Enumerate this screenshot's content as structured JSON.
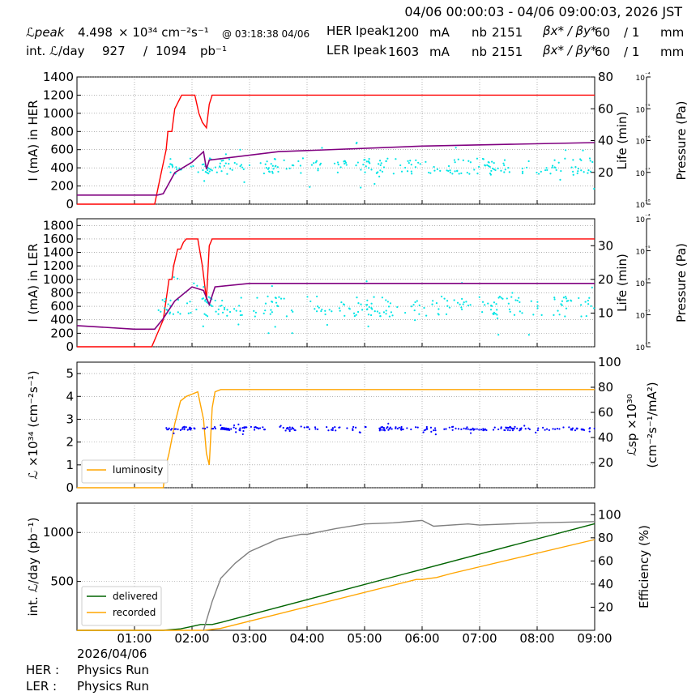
{
  "header": {
    "time_range": "04/06 00:00:03 - 04/06 09:00:03, 2026 JST",
    "lpeak_label": "ℒpeak",
    "lpeak_value": "4.498",
    "lpeak_unit": "× 10³⁴ cm⁻²s⁻¹",
    "lpeak_time": "@ 03:18:38 04/06",
    "intl_label": "int. ℒ/day",
    "intl_value": "927",
    "intl_sep": "/",
    "intl_total": "1094",
    "intl_unit": "pb⁻¹",
    "her_label": "HER Ipeak",
    "her_current": "1200",
    "her_unit": "mA",
    "her_nb_label": "nb",
    "her_nb": "2151",
    "her_beta_label": "βx* / βy*",
    "her_beta_x": "60",
    "her_beta_y": "/ 1",
    "her_beta_unit": "mm",
    "ler_label": "LER Ipeak",
    "ler_current": "1603",
    "ler_unit": "mA",
    "ler_nb_label": "nb",
    "ler_nb": "2151",
    "ler_beta_label": "βx* / βy*",
    "ler_beta_x": "60",
    "ler_beta_y": "/ 1",
    "ler_beta_unit": "mm"
  },
  "footer": {
    "date": "2026/04/06",
    "her_status_label": "HER :",
    "her_status": "Physics Run",
    "ler_status_label": "LER :",
    "ler_status": "Physics Run"
  },
  "colors": {
    "current": "#ff0000",
    "life": "#00e5e5",
    "pressure": "#800080",
    "luminosity": "#ffa500",
    "specific": "#0000ff",
    "delivered": "#006400",
    "recorded": "#ffa500",
    "efficiency": "#808080"
  },
  "chart_data": [
    {
      "type": "line",
      "panel": "her",
      "xlabel": "",
      "ylabel": "I (mA) in HER",
      "ylim": [
        0,
        1400
      ],
      "yticks": [
        0,
        200,
        400,
        600,
        800,
        1000,
        1200,
        1400
      ],
      "y2label": "Life (min)",
      "y2lim": [
        0,
        80
      ],
      "y2ticks": [
        20,
        40,
        60,
        80
      ],
      "y3label": "Pressure (Pa)",
      "y3ticks": [
        "10⁻⁸",
        "10⁻⁷",
        "10⁻⁶",
        "10⁻⁵",
        "10⁻⁴"
      ],
      "grid": true,
      "series": [
        {
          "role": "current",
          "axis": "y",
          "x": [
            0,
            1.35,
            1.45,
            1.55,
            1.58,
            1.65,
            1.7,
            1.78,
            1.82,
            1.86,
            2.0,
            2.05,
            2.12,
            2.18,
            2.25,
            2.3,
            2.35,
            2.4,
            9.0
          ],
          "y": [
            0,
            0,
            300,
            600,
            800,
            800,
            1050,
            1150,
            1200,
            1200,
            1200,
            1200,
            1000,
            900,
            840,
            1100,
            1200,
            1200,
            1200
          ]
        },
        {
          "role": "life",
          "axis": "y2",
          "kind": "scatter",
          "x_start": 1.6,
          "x_end": 9.0,
          "y_center": 24,
          "y_spread": 5
        },
        {
          "role": "pressure",
          "axis": "y3",
          "x": [
            0,
            1.4,
            1.5,
            1.6,
            1.7,
            2.0,
            2.2,
            2.25,
            2.3,
            3.5,
            6.0,
            9.0
          ],
          "y": [
            1.3,
            1.3,
            1.5,
            3.0,
            4.5,
            6.0,
            7.5,
            5.0,
            6.3,
            7.5,
            8.3,
            8.8
          ]
        }
      ]
    },
    {
      "type": "line",
      "panel": "ler",
      "xlabel": "",
      "ylabel": "I (mA) in LER",
      "ylim": [
        0,
        1900
      ],
      "yticks": [
        0,
        200,
        400,
        600,
        800,
        1000,
        1200,
        1400,
        1600,
        1800
      ],
      "y2label": "Life (min)",
      "y2lim": [
        0,
        38
      ],
      "y2ticks": [
        10,
        20,
        30
      ],
      "y3label": "Pressure (Pa)",
      "y3ticks": [
        "10⁻⁸",
        "10⁻⁷",
        "10⁻⁶",
        "10⁻⁵",
        "10⁻⁴"
      ],
      "grid": true,
      "series": [
        {
          "role": "current",
          "axis": "y",
          "x": [
            0,
            1.3,
            1.4,
            1.5,
            1.55,
            1.6,
            1.65,
            1.68,
            1.75,
            1.8,
            1.85,
            1.9,
            2.0,
            2.1,
            2.18,
            2.25,
            2.3,
            2.35,
            2.42,
            2.5,
            9.0
          ],
          "y": [
            0,
            0,
            200,
            400,
            700,
            1000,
            1000,
            1200,
            1450,
            1450,
            1550,
            1600,
            1600,
            1600,
            1200,
            700,
            1500,
            1600,
            1600,
            1600,
            1600
          ]
        },
        {
          "role": "life",
          "axis": "y2",
          "kind": "scatter",
          "x_start": 1.4,
          "x_end": 9.0,
          "y_center": 12,
          "y_spread": 3
        },
        {
          "role": "pressure",
          "axis": "y3",
          "x": [
            0,
            1.0,
            1.35,
            1.5,
            1.7,
            2.0,
            2.2,
            2.3,
            2.4,
            3.0,
            9.0
          ],
          "y": [
            3.0,
            2.5,
            2.5,
            4.0,
            6.5,
            8.5,
            8.0,
            6.0,
            8.5,
            9.0,
            9.0
          ]
        }
      ]
    },
    {
      "type": "line",
      "panel": "lum",
      "xlabel": "",
      "ylabel": "ℒ ×10³⁴ (cm⁻²s⁻¹)",
      "ylim": [
        0,
        5.5
      ],
      "yticks": [
        0,
        1,
        2,
        3,
        4,
        5
      ],
      "y2label": "ℒsp ×10³⁰ (cm⁻²s⁻¹/mA²)",
      "y2lim": [
        0,
        100
      ],
      "y2ticks": [
        20,
        40,
        60,
        80,
        100
      ],
      "legend": "lower-left",
      "grid": true,
      "series": [
        {
          "name": "luminosity",
          "role": "luminosity",
          "axis": "y",
          "x": [
            0,
            1.5,
            1.55,
            1.6,
            1.7,
            1.8,
            1.9,
            2.0,
            2.1,
            2.2,
            2.25,
            2.3,
            2.35,
            2.4,
            2.5,
            9.0
          ],
          "y": [
            0,
            0,
            1.0,
            1.5,
            2.8,
            3.8,
            4.0,
            4.1,
            4.2,
            3.0,
            1.5,
            1.0,
            3.5,
            4.2,
            4.3,
            4.3
          ]
        },
        {
          "role": "specific",
          "axis": "y2",
          "kind": "scatter",
          "x_start": 1.55,
          "x_end": 9.0,
          "y_center": 47,
          "y_spread": 1.5
        }
      ]
    },
    {
      "type": "line",
      "panel": "int",
      "xlabel": "",
      "ylabel": "int. ℒ/day (pb⁻¹)",
      "ylim": [
        0,
        1300
      ],
      "yticks": [
        500,
        1000
      ],
      "y2label": "Efficiency (%)",
      "y2lim": [
        0,
        110
      ],
      "y2ticks": [
        20,
        40,
        60,
        80,
        100
      ],
      "legend": "lower-left",
      "grid": true,
      "xticks": [
        "01:00",
        "02:00",
        "03:00",
        "04:00",
        "05:00",
        "06:00",
        "07:00",
        "08:00",
        "09:00"
      ],
      "series": [
        {
          "name": "delivered",
          "role": "delivered",
          "axis": "y",
          "x": [
            0,
            1.5,
            1.8,
            2.0,
            2.15,
            2.35,
            2.5,
            9.0
          ],
          "y": [
            0,
            0,
            15,
            40,
            60,
            60,
            80,
            1090
          ]
        },
        {
          "name": "recorded",
          "role": "recorded",
          "axis": "y",
          "x": [
            0,
            2.2,
            2.35,
            2.5,
            5.9,
            6.0,
            6.25,
            6.5,
            9.0
          ],
          "y": [
            0,
            0,
            10,
            20,
            520,
            520,
            540,
            580,
            927
          ]
        },
        {
          "role": "efficiency",
          "axis": "y2",
          "x": [
            2.2,
            2.35,
            2.5,
            2.75,
            3.0,
            3.5,
            3.9,
            4.0,
            4.5,
            5.0,
            5.5,
            6.0,
            6.2,
            6.8,
            7.0,
            8.0,
            9.0
          ],
          "y": [
            0,
            25,
            45,
            58,
            68,
            79,
            83,
            83,
            88,
            92,
            93,
            95,
            90,
            92,
            91,
            93,
            94
          ]
        }
      ]
    }
  ]
}
